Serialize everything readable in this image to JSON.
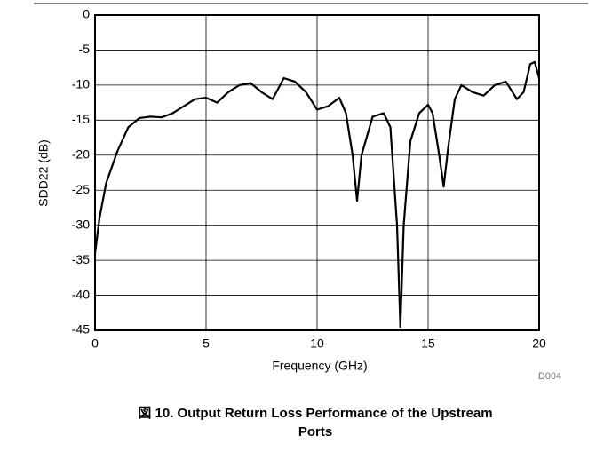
{
  "chart_data": {
    "type": "line",
    "x_label": "Frequency (GHz)",
    "y_label": "SDD22 (dB)",
    "figure_id": "D004",
    "caption": "図 10. Output Return Loss Performance of the Upstream Ports",
    "xlim": [
      0,
      20
    ],
    "xticks": [
      0,
      5,
      10,
      15,
      20
    ],
    "ylim": [
      -45,
      0
    ],
    "yticks": [
      0,
      -5,
      -10,
      -15,
      -20,
      -25,
      -30,
      -35,
      -40,
      -45
    ],
    "grid": true,
    "series": [
      {
        "color": "#000000",
        "x": [
          0,
          0.2,
          0.5,
          1,
          1.5,
          2,
          2.5,
          3,
          3.5,
          4,
          4.5,
          5,
          5.5,
          6,
          6.5,
          7,
          7.5,
          8,
          8.5,
          9,
          9.5,
          10,
          10.5,
          11,
          11.3,
          11.6,
          11.8,
          12,
          12.5,
          13,
          13.3,
          13.6,
          13.75,
          13.9,
          14.2,
          14.6,
          15,
          15.2,
          15.5,
          15.7,
          15.9,
          16.2,
          16.5,
          17,
          17.5,
          18,
          18.5,
          19,
          19.3,
          19.6,
          19.8,
          20
        ],
        "values": [
          -34,
          -29,
          -24,
          -19.5,
          -16,
          -14.7,
          -14.5,
          -14.6,
          -14,
          -13,
          -12,
          -11.8,
          -12.5,
          -11,
          -10,
          -9.7,
          -11,
          -12,
          -9,
          -9.5,
          -11,
          -13.5,
          -13,
          -11.8,
          -14,
          -20,
          -26.5,
          -20,
          -14.5,
          -14,
          -16,
          -30,
          -44.5,
          -30,
          -18,
          -14,
          -12.8,
          -14,
          -20,
          -24.5,
          -19,
          -12,
          -10,
          -11,
          -11.5,
          -10,
          -9.5,
          -12,
          -11,
          -7,
          -6.7,
          -9
        ]
      }
    ]
  }
}
